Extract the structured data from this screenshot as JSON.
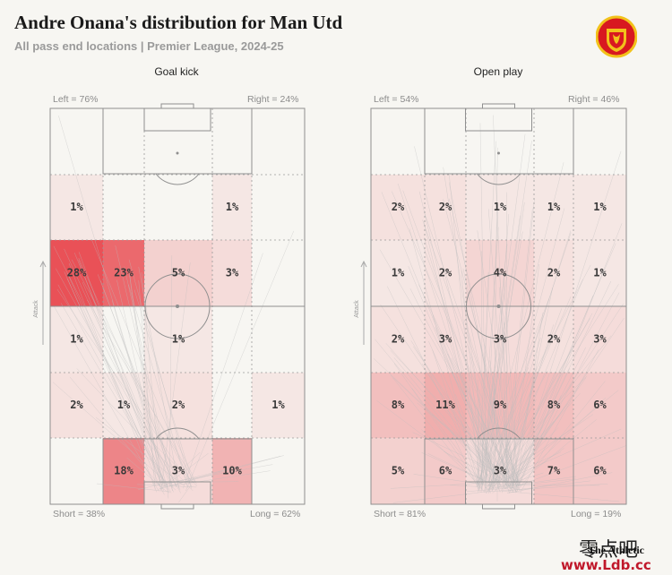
{
  "title": "Andre Onana's distribution for Man Utd",
  "subtitle": "All pass end locations | Premier League, 2024-25",
  "attack_label": "Attack",
  "colors": {
    "accent": "#e8484e",
    "background": "#f7f6f2",
    "line": "#9a9a9a",
    "arrow": "#bdbdbd"
  },
  "panels": [
    {
      "title": "Goal kick",
      "left_label": "Left = 76%",
      "right_label": "Right = 24%",
      "short_label": "Short = 38%",
      "long_label": "Long = 62%"
    },
    {
      "title": "Open play",
      "left_label": "Left = 54%",
      "right_label": "Right = 46%",
      "short_label": "Short = 81%",
      "long_label": "Long = 19%"
    }
  ],
  "chart_data": [
    {
      "type": "heatmap",
      "title": "Goal kick",
      "zones": [
        {
          "row": 1,
          "col": 0,
          "value": 1,
          "label": "1%"
        },
        {
          "row": 1,
          "col": 3,
          "value": 1,
          "label": "1%"
        },
        {
          "row": 2,
          "col": 0,
          "value": 28,
          "label": "28%"
        },
        {
          "row": 2,
          "col": 1,
          "value": 23,
          "label": "23%"
        },
        {
          "row": 2,
          "col": 2,
          "value": 5,
          "label": "5%"
        },
        {
          "row": 2,
          "col": 3,
          "value": 3,
          "label": "3%"
        },
        {
          "row": 3,
          "col": 0,
          "value": 1,
          "label": "1%"
        },
        {
          "row": 3,
          "col": 2,
          "value": 1,
          "label": "1%"
        },
        {
          "row": 4,
          "col": 0,
          "value": 2,
          "label": "2%"
        },
        {
          "row": 4,
          "col": 1,
          "value": 1,
          "label": "1%"
        },
        {
          "row": 4,
          "col": 2,
          "value": 2,
          "label": "2%"
        },
        {
          "row": 4,
          "col": 4,
          "value": 1,
          "label": "1%"
        },
        {
          "row": 5,
          "col": 1,
          "value": 18,
          "label": "18%"
        },
        {
          "row": 5,
          "col": 2,
          "value": 3,
          "label": "3%"
        },
        {
          "row": 5,
          "col": 3,
          "value": 10,
          "label": "10%"
        }
      ]
    },
    {
      "type": "heatmap",
      "title": "Open play",
      "zones": [
        {
          "row": 1,
          "col": 0,
          "value": 2,
          "label": "2%"
        },
        {
          "row": 1,
          "col": 1,
          "value": 2,
          "label": "2%"
        },
        {
          "row": 1,
          "col": 2,
          "value": 1,
          "label": "1%"
        },
        {
          "row": 1,
          "col": 3,
          "value": 1,
          "label": "1%"
        },
        {
          "row": 1,
          "col": 4,
          "value": 1,
          "label": "1%"
        },
        {
          "row": 2,
          "col": 0,
          "value": 1,
          "label": "1%"
        },
        {
          "row": 2,
          "col": 1,
          "value": 2,
          "label": "2%"
        },
        {
          "row": 2,
          "col": 2,
          "value": 4,
          "label": "4%"
        },
        {
          "row": 2,
          "col": 3,
          "value": 2,
          "label": "2%"
        },
        {
          "row": 2,
          "col": 4,
          "value": 1,
          "label": "1%"
        },
        {
          "row": 3,
          "col": 0,
          "value": 2,
          "label": "2%"
        },
        {
          "row": 3,
          "col": 1,
          "value": 3,
          "label": "3%"
        },
        {
          "row": 3,
          "col": 2,
          "value": 3,
          "label": "3%"
        },
        {
          "row": 3,
          "col": 3,
          "value": 2,
          "label": "2%"
        },
        {
          "row": 3,
          "col": 4,
          "value": 3,
          "label": "3%"
        },
        {
          "row": 4,
          "col": 0,
          "value": 8,
          "label": "8%"
        },
        {
          "row": 4,
          "col": 1,
          "value": 11,
          "label": "11%"
        },
        {
          "row": 4,
          "col": 2,
          "value": 9,
          "label": "9%"
        },
        {
          "row": 4,
          "col": 3,
          "value": 8,
          "label": "8%"
        },
        {
          "row": 4,
          "col": 4,
          "value": 6,
          "label": "6%"
        },
        {
          "row": 5,
          "col": 0,
          "value": 5,
          "label": "5%"
        },
        {
          "row": 5,
          "col": 1,
          "value": 6,
          "label": "6%"
        },
        {
          "row": 5,
          "col": 2,
          "value": 3,
          "label": "3%"
        },
        {
          "row": 5,
          "col": 3,
          "value": 7,
          "label": "7%"
        },
        {
          "row": 5,
          "col": 4,
          "value": 6,
          "label": "6%"
        }
      ]
    }
  ],
  "watermark": {
    "line1": "零点吧",
    "line2": "The Athletic",
    "line3": "www.Ldb.cc"
  }
}
